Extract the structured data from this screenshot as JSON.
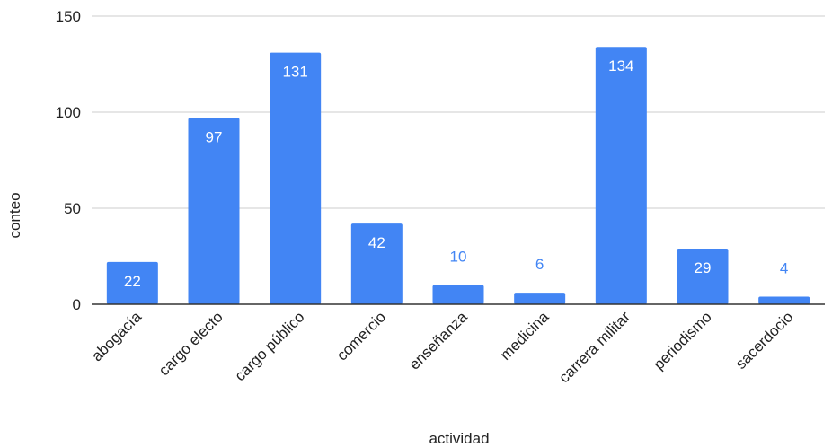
{
  "chart_data": {
    "type": "bar",
    "title": "",
    "xlabel": "actividad",
    "ylabel": "conteo",
    "categories": [
      "abogacía",
      "cargo electo",
      "cargo público",
      "comercio",
      "enseñanza",
      "medicina",
      "carrera militar",
      "periodismo",
      "sacerdocio"
    ],
    "values": [
      22,
      97,
      131,
      42,
      10,
      6,
      134,
      29,
      4
    ],
    "value_labels": [
      "22",
      "97",
      "131",
      "42",
      "10",
      "6",
      "134",
      "29",
      "4"
    ],
    "y_ticks": [
      0,
      50,
      100,
      150
    ],
    "y_tick_labels": [
      "0",
      "50",
      "100",
      "150"
    ],
    "ylim": [
      0,
      150
    ],
    "grid": true,
    "legend": "none",
    "colors": {
      "bar": "#4285f4",
      "label_inside": "#ffffff",
      "label_outside": "#4285f4",
      "grid": "#cccccc",
      "baseline": "#333333",
      "text": "#222222"
    }
  }
}
